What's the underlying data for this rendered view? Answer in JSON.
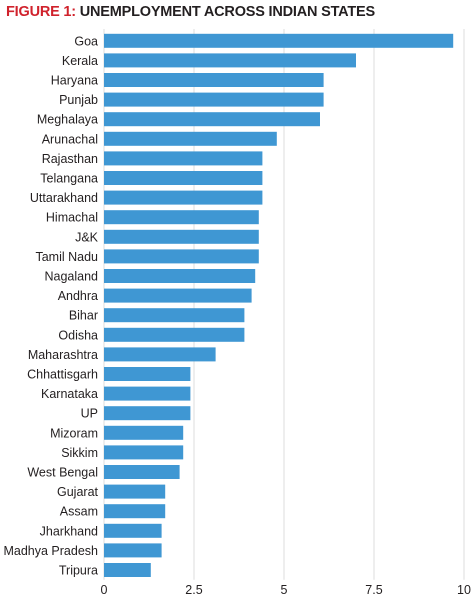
{
  "title": {
    "prefix": "FIGURE 1:",
    "text": " UNEMPLOYMENT ACROSS INDIAN STATES"
  },
  "colors": {
    "bar": "#3f97d3",
    "grid": "#dcdcdc",
    "title_prefix": "#d0222c",
    "text": "#231f20"
  },
  "chart_data": {
    "type": "bar",
    "orientation": "horizontal",
    "title": "UNEMPLOYMENT ACROSS INDIAN STATES",
    "xlabel": "",
    "ylabel": "",
    "xlim": [
      0,
      10
    ],
    "xticks": [
      0,
      2.5,
      5,
      7.5,
      10
    ],
    "xtick_labels": [
      "0",
      "2.5",
      "5",
      "7.5",
      "10"
    ],
    "grid": "vertical",
    "categories": [
      "Goa",
      "Kerala",
      "Haryana",
      "Punjab",
      "Meghalaya",
      "Arunachal",
      "Rajasthan",
      "Telangana",
      "Uttarakhand",
      "Himachal",
      "J&K",
      "Tamil Nadu",
      "Nagaland",
      "Andhra",
      "Bihar",
      "Odisha",
      "Maharashtra",
      "Chhattisgarh",
      "Karnataka",
      "UP",
      "Mizoram",
      "Sikkim",
      "West Bengal",
      "Gujarat",
      "Assam",
      "Jharkhand",
      "Madhya Pradesh",
      "Tripura"
    ],
    "values": [
      9.7,
      7.0,
      6.1,
      6.1,
      6.0,
      4.8,
      4.4,
      4.4,
      4.4,
      4.3,
      4.3,
      4.3,
      4.2,
      4.1,
      3.9,
      3.9,
      3.1,
      2.4,
      2.4,
      2.4,
      2.2,
      2.2,
      2.1,
      1.7,
      1.7,
      1.6,
      1.6,
      1.3
    ]
  }
}
